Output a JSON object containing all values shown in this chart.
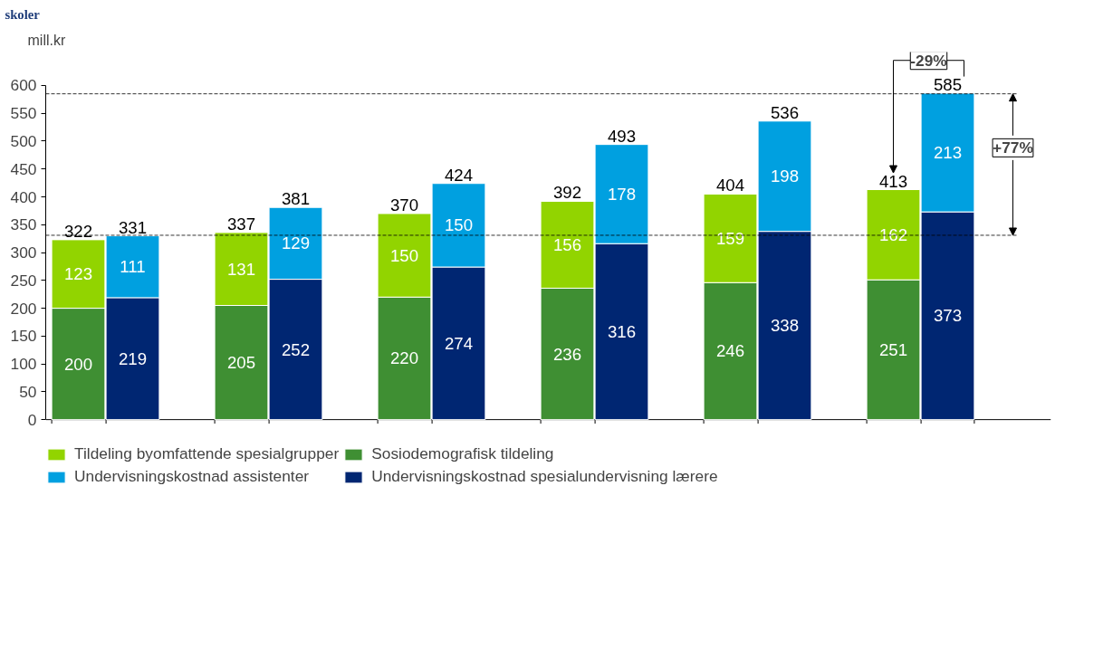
{
  "chart_data": {
    "type": "bar",
    "title": "skoler",
    "ylabel": "mill.kr",
    "stacked": true,
    "categories": [
      null,
      null,
      null,
      null,
      null,
      null,
      null,
      null,
      null,
      null,
      null,
      null
    ],
    "series": [
      {
        "name": "Sosiodemografisk tildeling",
        "color": "#3f8f33",
        "values": [
          200,
          null,
          205,
          null,
          220,
          null,
          236,
          null,
          246,
          null,
          251,
          null
        ]
      },
      {
        "name": "Tildeling byomfattende spesialgrupper",
        "color": "#92d400",
        "values": [
          123,
          null,
          131,
          null,
          150,
          null,
          156,
          null,
          159,
          null,
          162,
          null
        ]
      },
      {
        "name": "Undervisningskostnad spesialundervisning lærere",
        "color": "#002672",
        "values": [
          null,
          219,
          null,
          252,
          null,
          274,
          null,
          316,
          null,
          338,
          null,
          373
        ]
      },
      {
        "name": "Undervisningskostnad assistenter",
        "color": "#00a0e0",
        "values": [
          null,
          111,
          null,
          129,
          null,
          150,
          null,
          178,
          null,
          198,
          null,
          213
        ]
      }
    ],
    "totals": [
      "322",
      "331",
      "337",
      "381",
      "370",
      "424",
      "392",
      "493",
      "404",
      "536",
      "413",
      "585"
    ],
    "data_labels": true,
    "ylim": [
      0,
      600
    ],
    "yticks": [
      0,
      50,
      100,
      150,
      200,
      250,
      300,
      350,
      400,
      450,
      500,
      550,
      600
    ],
    "grid": false,
    "legend": "bottom",
    "tick_labels": "y",
    "ref_lines": [
      {
        "axis": "y",
        "value": 331,
        "line_style": "dashed",
        "color": "#000000"
      },
      {
        "axis": "y",
        "value": 585,
        "line_style": "dashed",
        "color": "#000000"
      }
    ],
    "annotations": [
      "-29%",
      "+77%"
    ]
  }
}
